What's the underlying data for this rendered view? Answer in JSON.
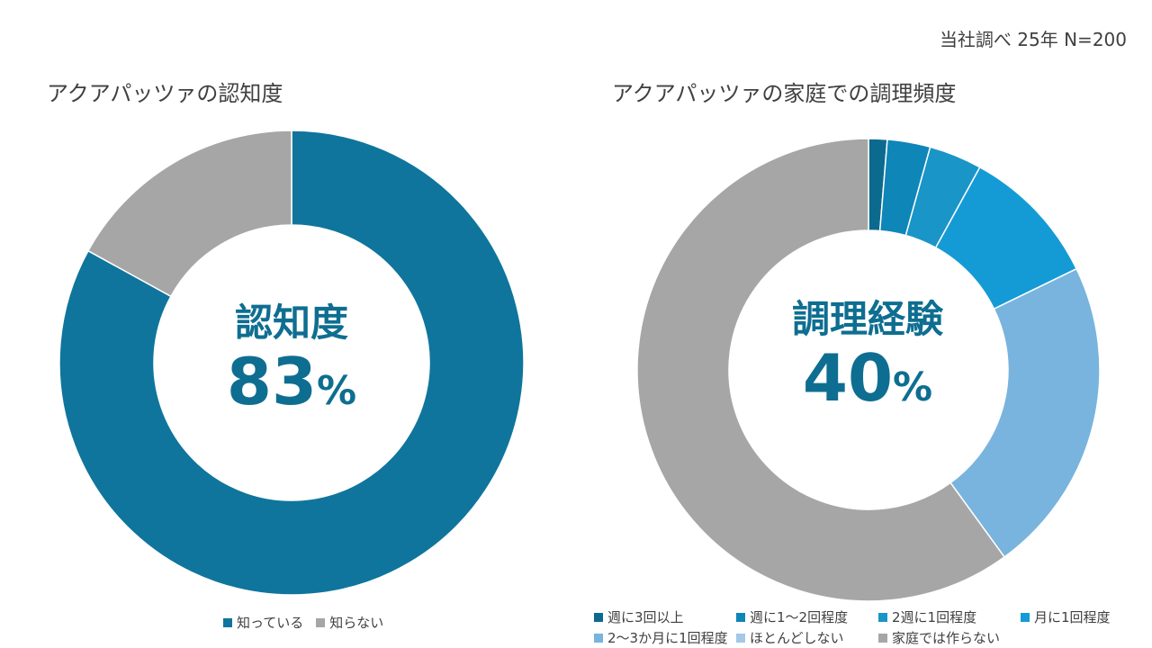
{
  "source_note": "当社調べ 25年 N=200",
  "chart_data": [
    {
      "type": "pie",
      "variant": "donut",
      "title": "アクアパッツァの認知度",
      "center_label": "認知度",
      "center_value": "83",
      "center_unit": "%",
      "categories": [
        "知っている",
        "知らない"
      ],
      "values": [
        83,
        17
      ],
      "colors": [
        "#0f759c",
        "#a6a6a6"
      ]
    },
    {
      "type": "pie",
      "variant": "donut",
      "title": "アクアパッツァの家庭での調理頻度",
      "center_label": "調理経験",
      "center_value": "40",
      "center_unit": "%",
      "categories": [
        "週に3回以上",
        "週に1～2回程度",
        "2週に1回程度",
        "月に1回程度",
        "2～3か月に1回程度",
        "ほとんどしない",
        "家庭では作らない"
      ],
      "values": [
        1.3,
        3,
        3.7,
        9.8,
        22.2,
        0,
        60
      ],
      "colors": [
        "#0c6a8f",
        "#0e86b8",
        "#1a95c7",
        "#149bd6",
        "#78b4de",
        "#a3c8e8",
        "#a6a6a6"
      ]
    }
  ]
}
